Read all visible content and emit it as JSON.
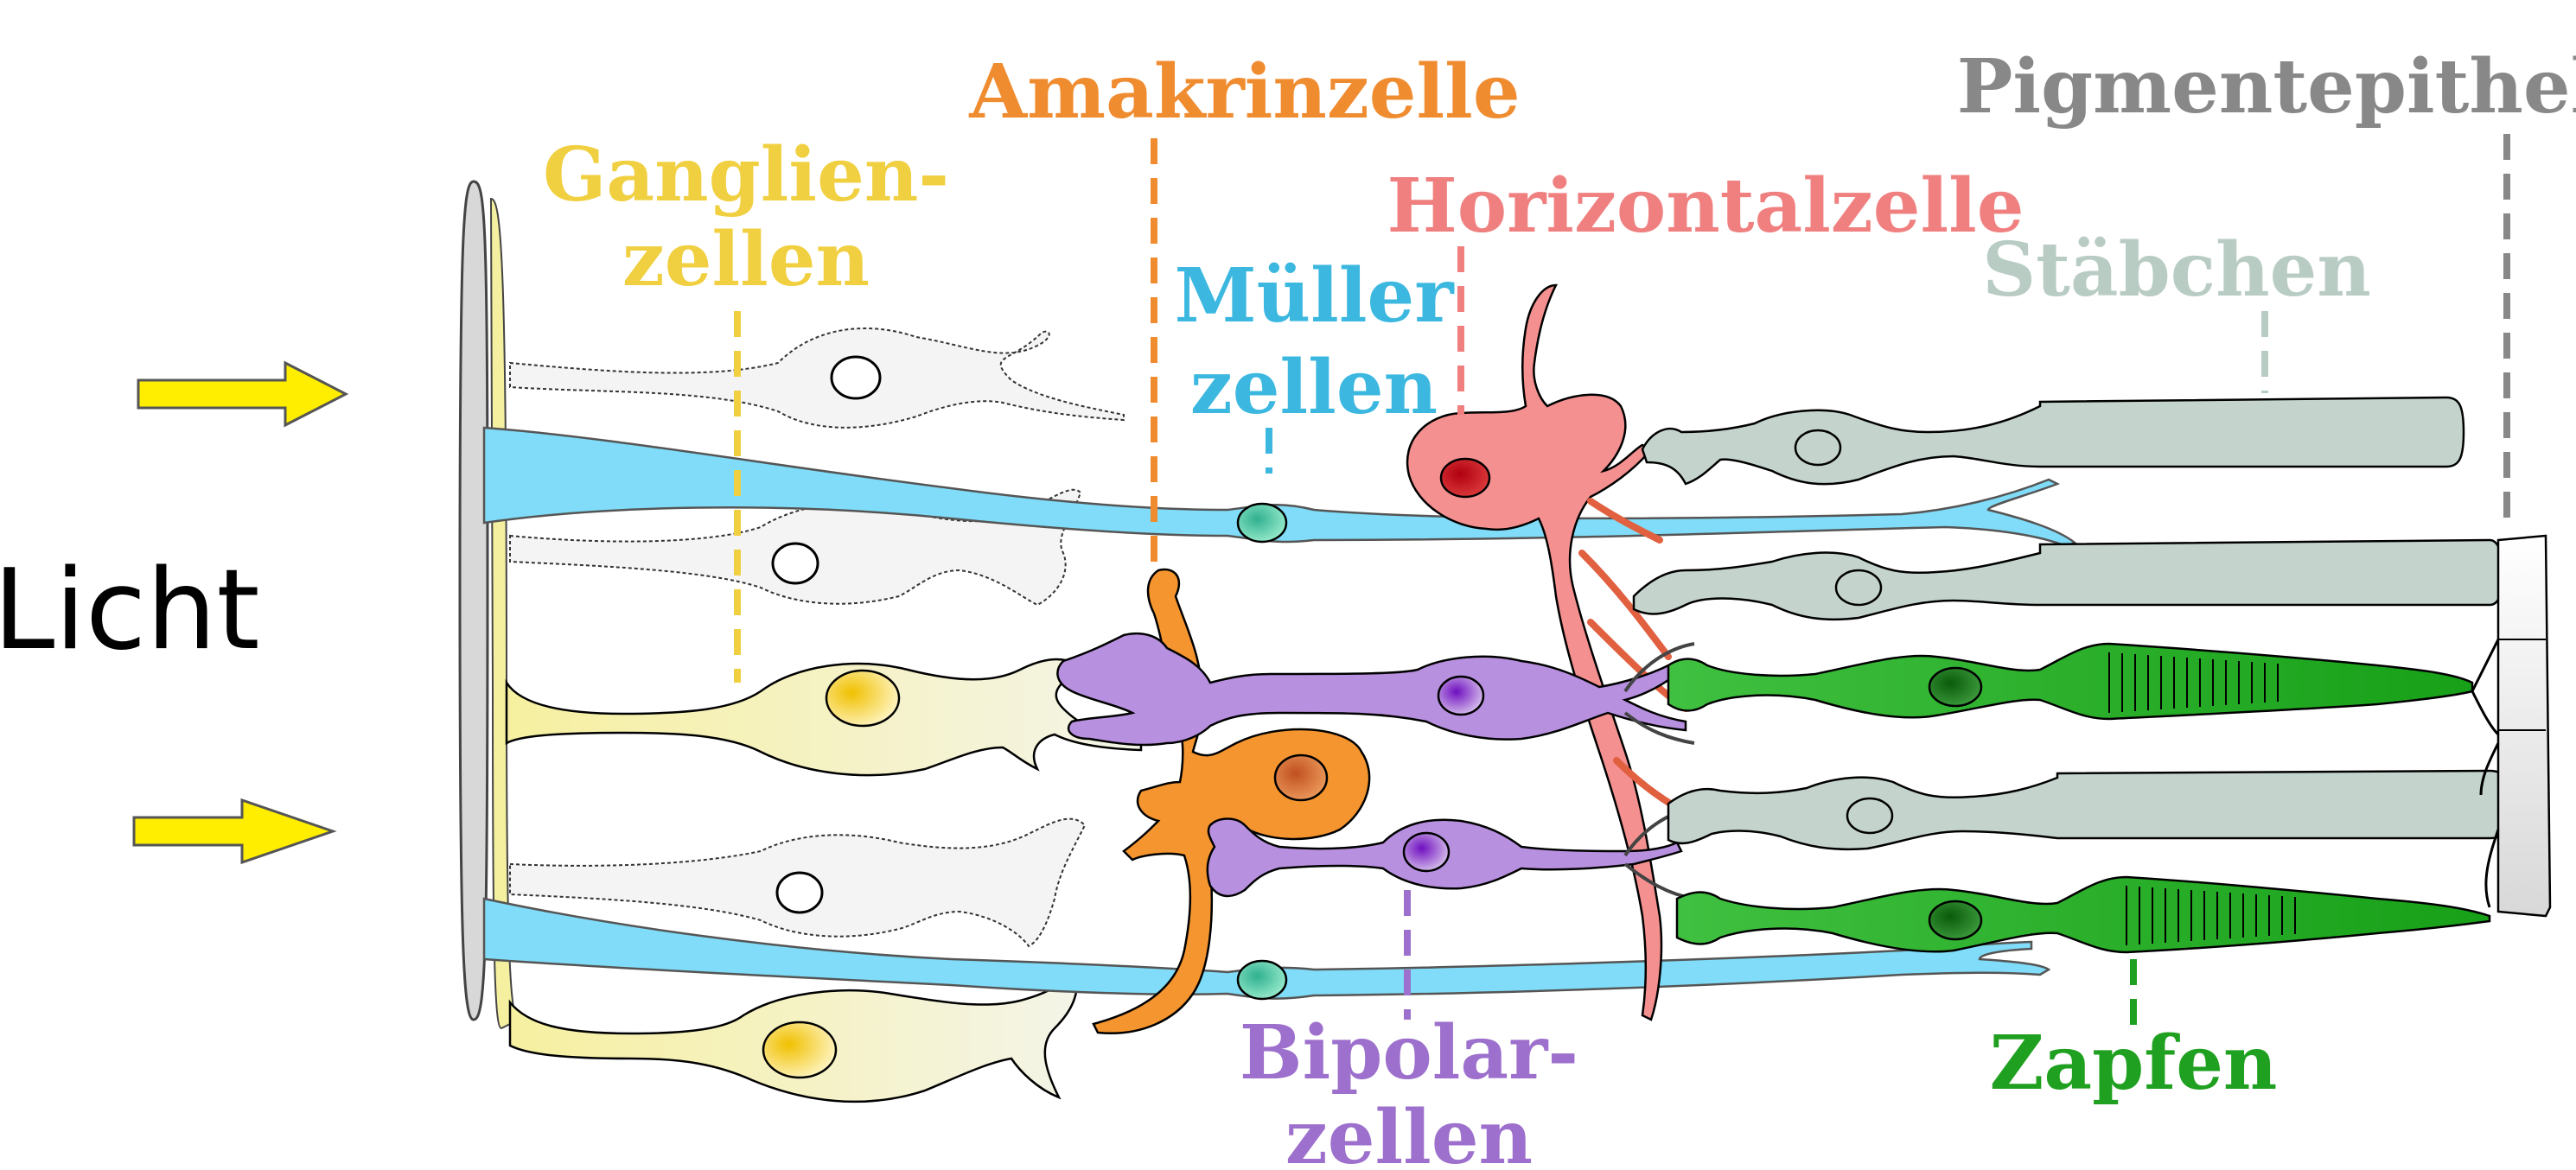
{
  "labels": {
    "licht": "Licht",
    "ganglien_1": "Ganglien-",
    "ganglien_2": "zellen",
    "amakrin": "Amakrinzelle",
    "mueller_1": "Müller",
    "mueller_2": "zellen",
    "horizontal": "Horizontalzelle",
    "pigment": "Pigmentepithel",
    "staebchen": "Stäbchen",
    "bipolar_1": "Bipolar-",
    "bipolar_2": "zellen",
    "zapfen": "Zapfen"
  },
  "colors": {
    "ganglion": "#f0d040",
    "amacrine": "#f08c30",
    "mueller": "#3cb8e0",
    "horizontal": "#f08080",
    "pigment": "#888888",
    "rod": "#b8ccc4",
    "bipolar": "#9c70cc",
    "cone": "#20a020",
    "arrow": "#ffee00"
  }
}
